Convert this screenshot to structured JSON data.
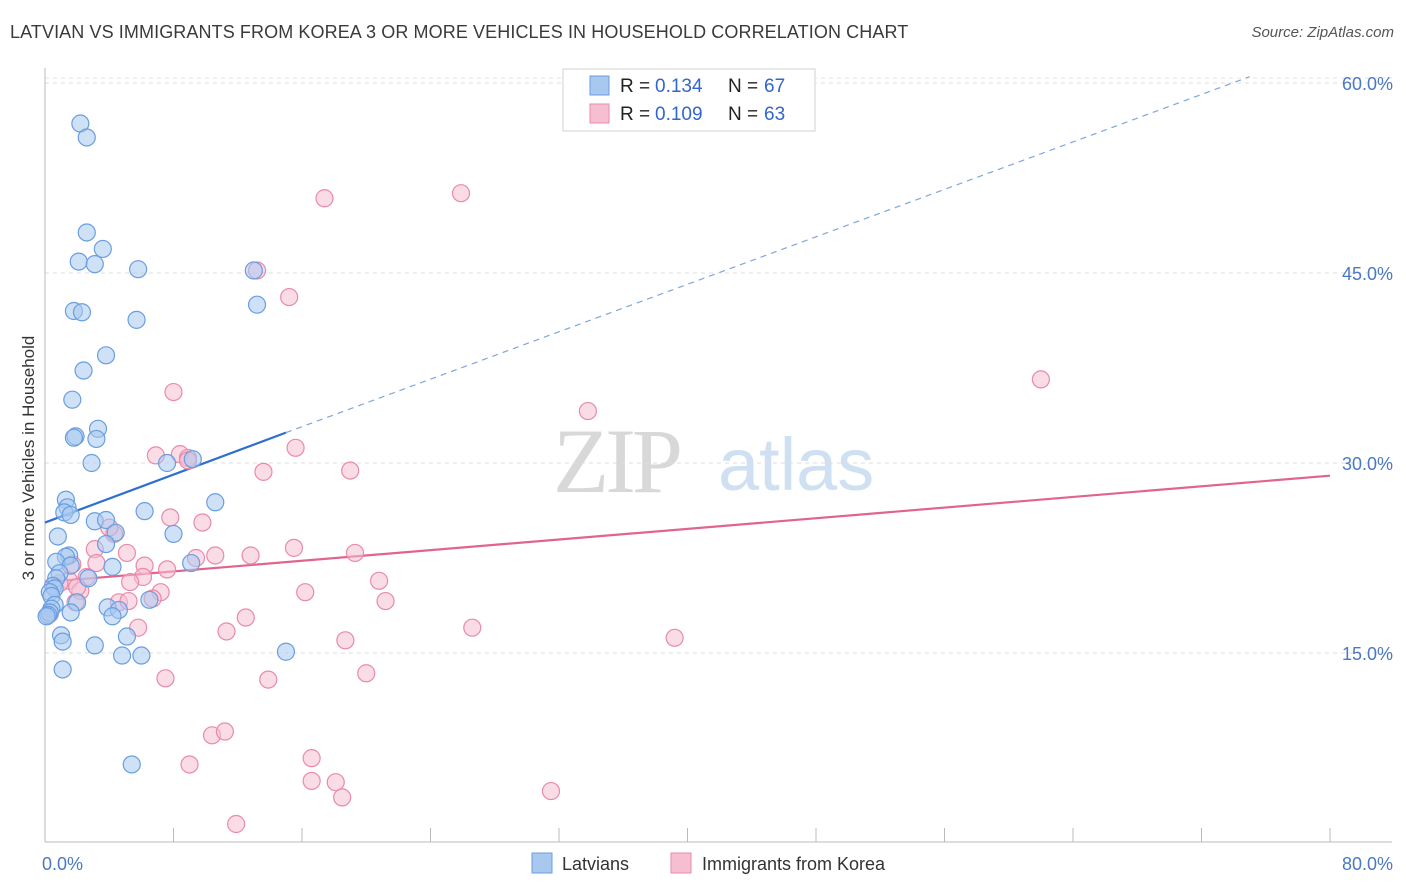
{
  "header": {
    "title": "LATVIAN VS IMMIGRANTS FROM KOREA 3 OR MORE VEHICLES IN HOUSEHOLD CORRELATION CHART",
    "source": "Source: ZipAtlas.com"
  },
  "watermark": {
    "zip": "ZIP",
    "atlas": "atlas"
  },
  "chart_data": {
    "type": "scatter",
    "ylabel": "3 or more Vehicles in Household",
    "xlim": [
      0,
      80
    ],
    "ylim": [
      0,
      62
    ],
    "x_tick_labels": [
      "0.0%",
      "80.0%"
    ],
    "y_ticks": [
      {
        "value": 15,
        "label": "15.0%"
      },
      {
        "value": 30,
        "label": "30.0%"
      },
      {
        "value": 45,
        "label": "45.0%"
      },
      {
        "value": 60,
        "label": "60.0%"
      }
    ],
    "legend": [
      {
        "r_label": "R =",
        "r_value": "0.134",
        "n_label": "N =",
        "n_value": "67"
      },
      {
        "r_label": "R =",
        "r_value": "0.109",
        "n_label": "N =",
        "n_value": "63"
      }
    ],
    "colors": {
      "latvian_fill": "#a8c8f0",
      "latvian_stroke": "#6a9ee0",
      "latvian_line": "#2f6fcf",
      "korea_fill": "#f6bfd1",
      "korea_stroke": "#e98aab",
      "korea_line": "#e0648f"
    },
    "series": [
      {
        "name": "Latvians",
        "trend": {
          "x0": 0,
          "y0": 25.3,
          "x1": 15,
          "y1": 32.4,
          "dashed_to_x": 75,
          "dashed_to_y": 60.5
        },
        "points": [
          [
            2.2,
            56.8
          ],
          [
            2.6,
            55.7
          ],
          [
            2.6,
            48.2
          ],
          [
            3.6,
            46.9
          ],
          [
            2.1,
            45.9
          ],
          [
            3.1,
            45.7
          ],
          [
            5.8,
            45.3
          ],
          [
            13.0,
            45.2
          ],
          [
            13.2,
            42.5
          ],
          [
            1.8,
            42.0
          ],
          [
            2.3,
            41.9
          ],
          [
            5.7,
            41.3
          ],
          [
            3.8,
            38.5
          ],
          [
            2.4,
            37.3
          ],
          [
            1.7,
            35.0
          ],
          [
            3.3,
            32.7
          ],
          [
            1.9,
            32.1
          ],
          [
            1.8,
            32.0
          ],
          [
            3.2,
            31.9
          ],
          [
            2.9,
            30.0
          ],
          [
            7.6,
            30.0
          ],
          [
            9.2,
            30.3
          ],
          [
            1.3,
            27.1
          ],
          [
            1.4,
            26.5
          ],
          [
            1.2,
            26.1
          ],
          [
            1.6,
            25.9
          ],
          [
            6.2,
            26.2
          ],
          [
            10.6,
            26.9
          ],
          [
            3.1,
            25.4
          ],
          [
            3.8,
            25.5
          ],
          [
            4.4,
            24.5
          ],
          [
            8.0,
            24.4
          ],
          [
            0.8,
            24.2
          ],
          [
            3.8,
            23.6
          ],
          [
            1.5,
            22.7
          ],
          [
            1.3,
            22.6
          ],
          [
            0.7,
            22.2
          ],
          [
            1.6,
            21.9
          ],
          [
            9.1,
            22.1
          ],
          [
            4.2,
            21.8
          ],
          [
            0.9,
            21.3
          ],
          [
            0.7,
            20.9
          ],
          [
            2.7,
            20.9
          ],
          [
            0.5,
            20.3
          ],
          [
            0.6,
            20.1
          ],
          [
            0.3,
            19.8
          ],
          [
            0.4,
            19.5
          ],
          [
            2.0,
            19.0
          ],
          [
            0.6,
            18.8
          ],
          [
            0.4,
            18.5
          ],
          [
            0.3,
            18.2
          ],
          [
            6.5,
            19.2
          ],
          [
            3.9,
            18.6
          ],
          [
            4.6,
            18.4
          ],
          [
            1.6,
            18.2
          ],
          [
            0.2,
            18.0
          ],
          [
            0.1,
            17.9
          ],
          [
            4.2,
            17.9
          ],
          [
            1.0,
            16.4
          ],
          [
            5.1,
            16.3
          ],
          [
            1.1,
            15.9
          ],
          [
            3.1,
            15.6
          ],
          [
            15.0,
            15.1
          ],
          [
            4.8,
            14.8
          ],
          [
            6.0,
            14.8
          ],
          [
            1.1,
            13.7
          ],
          [
            5.4,
            6.2
          ]
        ]
      },
      {
        "name": "Immigrants from Korea",
        "trend": {
          "x0": 0,
          "y0": 20.6,
          "x1": 80,
          "y1": 29.0
        },
        "points": [
          [
            25.9,
            51.3
          ],
          [
            17.4,
            50.9
          ],
          [
            13.2,
            45.2
          ],
          [
            15.2,
            43.1
          ],
          [
            62.0,
            36.6
          ],
          [
            8.0,
            35.6
          ],
          [
            33.8,
            34.1
          ],
          [
            15.6,
            31.2
          ],
          [
            6.9,
            30.6
          ],
          [
            8.4,
            30.7
          ],
          [
            8.9,
            30.4
          ],
          [
            13.6,
            29.3
          ],
          [
            19.0,
            29.4
          ],
          [
            7.8,
            25.7
          ],
          [
            9.8,
            25.3
          ],
          [
            4.3,
            24.4
          ],
          [
            3.1,
            23.2
          ],
          [
            5.1,
            22.9
          ],
          [
            10.6,
            22.7
          ],
          [
            12.8,
            22.7
          ],
          [
            15.5,
            23.3
          ],
          [
            19.3,
            22.9
          ],
          [
            1.7,
            22.0
          ],
          [
            3.2,
            22.1
          ],
          [
            6.2,
            21.9
          ],
          [
            9.4,
            22.5
          ],
          [
            7.6,
            21.6
          ],
          [
            1.5,
            20.7
          ],
          [
            2.6,
            21.0
          ],
          [
            6.1,
            21.0
          ],
          [
            20.8,
            20.7
          ],
          [
            0.9,
            20.5
          ],
          [
            5.3,
            20.6
          ],
          [
            2.2,
            19.9
          ],
          [
            7.2,
            19.8
          ],
          [
            16.2,
            19.8
          ],
          [
            1.9,
            19.0
          ],
          [
            4.6,
            19.0
          ],
          [
            5.2,
            19.1
          ],
          [
            21.2,
            19.1
          ],
          [
            6.7,
            19.3
          ],
          [
            0.3,
            18.1
          ],
          [
            12.5,
            17.8
          ],
          [
            5.8,
            17.0
          ],
          [
            11.3,
            16.7
          ],
          [
            26.6,
            17.0
          ],
          [
            18.7,
            16.0
          ],
          [
            39.2,
            16.2
          ],
          [
            7.5,
            13.0
          ],
          [
            13.9,
            12.9
          ],
          [
            20.0,
            13.4
          ],
          [
            10.4,
            8.5
          ],
          [
            11.2,
            8.8
          ],
          [
            9.0,
            6.2
          ],
          [
            16.6,
            6.7
          ],
          [
            16.6,
            4.9
          ],
          [
            18.1,
            4.8
          ],
          [
            18.5,
            3.6
          ],
          [
            31.5,
            4.1
          ],
          [
            11.9,
            1.5
          ],
          [
            8.9,
            30.2
          ],
          [
            4.0,
            24.9
          ],
          [
            2.0,
            20.2
          ]
        ]
      }
    ]
  }
}
